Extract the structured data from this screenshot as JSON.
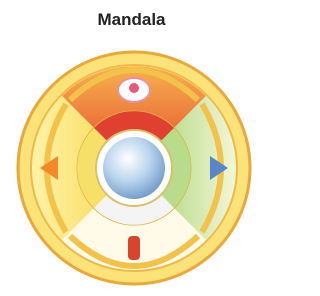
{
  "title": "Mandala"
}
